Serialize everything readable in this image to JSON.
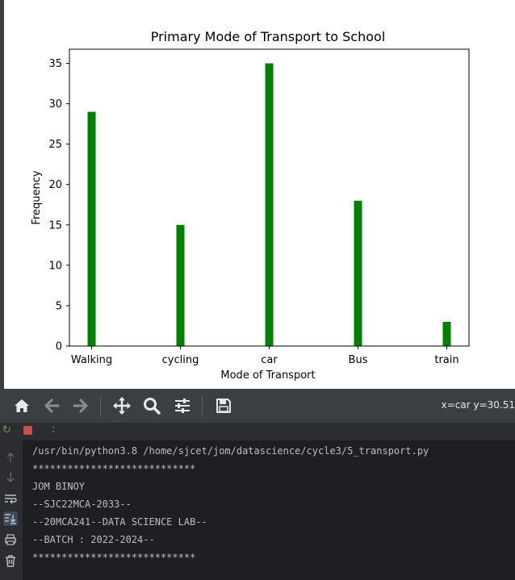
{
  "chart_data": {
    "type": "bar",
    "title": "Primary Mode of Transport to School",
    "xlabel": "Mode of Transport",
    "ylabel": "Frequency",
    "categories": [
      "Walking",
      "cycling",
      "car",
      "Bus",
      "train"
    ],
    "values": [
      29,
      15,
      35,
      18,
      3
    ],
    "ylim": [
      0,
      36.75
    ],
    "yticks": [
      0,
      5,
      10,
      15,
      20,
      25,
      30,
      35
    ],
    "bar_color": "#008000",
    "grid": false
  },
  "toolbar": {
    "coord_readout": "x=car y=30.51"
  },
  "console": {
    "lines": [
      "/usr/bin/python3.8 /home/sjcet/jom/datascience/cycle3/5_transport.py",
      "****************************",
      "JOM BINOY",
      "--SJC22MCA-2033--",
      "--20MCA241--DATA SCIENCE LAB--",
      "--BATCH : 2022-2024--",
      "****************************"
    ]
  },
  "run_header": {
    "label": ":"
  }
}
